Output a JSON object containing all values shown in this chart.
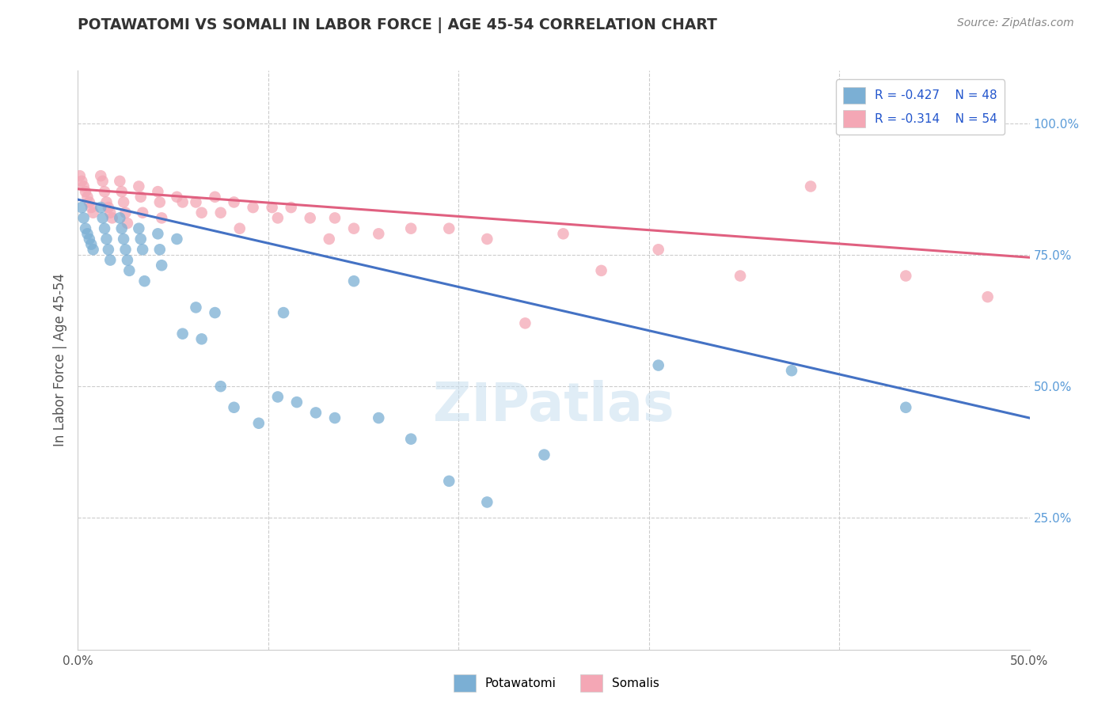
{
  "title": "POTAWATOMI VS SOMALI IN LABOR FORCE | AGE 45-54 CORRELATION CHART",
  "source": "Source: ZipAtlas.com",
  "xlabel": "",
  "ylabel": "In Labor Force | Age 45-54",
  "xlim": [
    0.0,
    0.5
  ],
  "ylim": [
    0.0,
    1.1
  ],
  "xticks": [
    0.0,
    0.1,
    0.2,
    0.3,
    0.4,
    0.5
  ],
  "xticklabels": [
    "0.0%",
    "",
    "",
    "",
    "",
    "50.0%"
  ],
  "yticks_right": [
    0.25,
    0.5,
    0.75,
    1.0
  ],
  "yticklabels_right": [
    "25.0%",
    "50.0%",
    "75.0%",
    "100.0%"
  ],
  "blue_color": "#7bafd4",
  "pink_color": "#f4a7b5",
  "blue_line_color": "#4472c4",
  "pink_line_color": "#e06080",
  "legend_R_blue": "R = -0.427",
  "legend_N_blue": "N = 48",
  "legend_R_pink": "R = -0.314",
  "legend_N_pink": "N = 54",
  "watermark": "ZIPatlas",
  "blue_x": [
    0.002,
    0.003,
    0.004,
    0.005,
    0.006,
    0.007,
    0.008,
    0.012,
    0.013,
    0.014,
    0.015,
    0.016,
    0.017,
    0.022,
    0.023,
    0.024,
    0.025,
    0.026,
    0.027,
    0.032,
    0.033,
    0.034,
    0.035,
    0.042,
    0.043,
    0.044,
    0.052,
    0.055,
    0.062,
    0.065,
    0.072,
    0.075,
    0.082,
    0.095,
    0.105,
    0.108,
    0.115,
    0.125,
    0.135,
    0.145,
    0.158,
    0.175,
    0.195,
    0.215,
    0.245,
    0.305,
    0.375,
    0.435
  ],
  "blue_y": [
    0.84,
    0.82,
    0.8,
    0.79,
    0.78,
    0.77,
    0.76,
    0.84,
    0.82,
    0.8,
    0.78,
    0.76,
    0.74,
    0.82,
    0.8,
    0.78,
    0.76,
    0.74,
    0.72,
    0.8,
    0.78,
    0.76,
    0.7,
    0.79,
    0.76,
    0.73,
    0.78,
    0.6,
    0.65,
    0.59,
    0.64,
    0.5,
    0.46,
    0.43,
    0.48,
    0.64,
    0.47,
    0.45,
    0.44,
    0.7,
    0.44,
    0.4,
    0.32,
    0.28,
    0.37,
    0.54,
    0.53,
    0.46
  ],
  "pink_x": [
    0.001,
    0.002,
    0.003,
    0.004,
    0.005,
    0.006,
    0.007,
    0.008,
    0.012,
    0.013,
    0.014,
    0.015,
    0.016,
    0.017,
    0.018,
    0.022,
    0.023,
    0.024,
    0.025,
    0.026,
    0.032,
    0.033,
    0.034,
    0.042,
    0.043,
    0.044,
    0.052,
    0.055,
    0.062,
    0.065,
    0.072,
    0.075,
    0.082,
    0.085,
    0.092,
    0.102,
    0.105,
    0.112,
    0.122,
    0.132,
    0.135,
    0.145,
    0.158,
    0.175,
    0.195,
    0.215,
    0.235,
    0.255,
    0.275,
    0.305,
    0.348,
    0.385,
    0.435,
    0.478
  ],
  "pink_y": [
    0.9,
    0.89,
    0.88,
    0.87,
    0.86,
    0.85,
    0.84,
    0.83,
    0.9,
    0.89,
    0.87,
    0.85,
    0.84,
    0.83,
    0.82,
    0.89,
    0.87,
    0.85,
    0.83,
    0.81,
    0.88,
    0.86,
    0.83,
    0.87,
    0.85,
    0.82,
    0.86,
    0.85,
    0.85,
    0.83,
    0.86,
    0.83,
    0.85,
    0.8,
    0.84,
    0.84,
    0.82,
    0.84,
    0.82,
    0.78,
    0.82,
    0.8,
    0.79,
    0.8,
    0.8,
    0.78,
    0.62,
    0.79,
    0.72,
    0.76,
    0.71,
    0.88,
    0.71,
    0.67
  ],
  "blue_trendline_x": [
    0.0,
    0.5
  ],
  "blue_trendline_y": [
    0.855,
    0.44
  ],
  "pink_trendline_x": [
    0.0,
    0.5
  ],
  "pink_trendline_y": [
    0.875,
    0.745
  ],
  "grid_color": "#cccccc",
  "title_color": "#333333",
  "axis_label_color": "#555555",
  "right_tick_color": "#5a9bd8",
  "bg_color": "#ffffff"
}
